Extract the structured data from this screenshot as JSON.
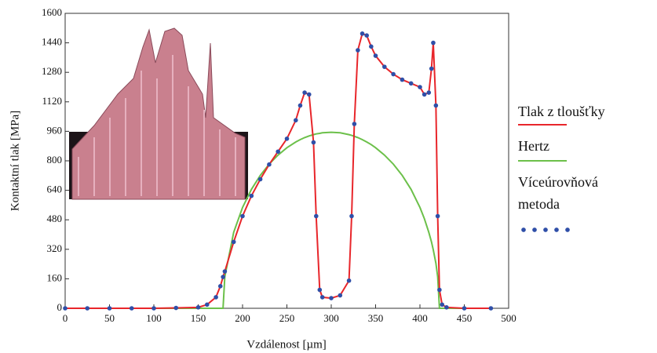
{
  "chart_data": {
    "type": "line",
    "xlabel": "Vzdálenost [µm]",
    "ylabel": "Kontaktní tlak [MPa]",
    "x": [
      0,
      25,
      50,
      75,
      100,
      125,
      150,
      160,
      170,
      175,
      178,
      180,
      190,
      200,
      210,
      220,
      230,
      240,
      250,
      260,
      265,
      270,
      275,
      280,
      283,
      287,
      290,
      300,
      310,
      320,
      323,
      326,
      330,
      335,
      340,
      345,
      350,
      360,
      370,
      380,
      390,
      400,
      405,
      410,
      413,
      415,
      418,
      420,
      422,
      425,
      430,
      450,
      480
    ],
    "series": [
      {
        "name": "Tlak z tloušťky",
        "color": "#e8262b",
        "style": "line",
        "values": [
          0,
          0,
          0,
          0,
          0,
          2,
          5,
          20,
          60,
          120,
          170,
          200,
          360,
          500,
          610,
          700,
          780,
          850,
          920,
          1020,
          1100,
          1170,
          1160,
          900,
          500,
          100,
          60,
          55,
          70,
          150,
          500,
          1000,
          1400,
          1490,
          1480,
          1420,
          1370,
          1310,
          1270,
          1240,
          1220,
          1200,
          1160,
          1170,
          1300,
          1440,
          1100,
          500,
          100,
          20,
          5,
          0,
          0
        ]
      },
      {
        "name": "Hertz",
        "color": "#6cc04a",
        "style": "line",
        "values": [
          0,
          0,
          0,
          0,
          0,
          0,
          0,
          0,
          0,
          0,
          0,
          171,
          412,
          547,
          645,
          721,
          782,
          831,
          871,
          902,
          915,
          926,
          935,
          942,
          946,
          949,
          952,
          955,
          952,
          942,
          938,
          933,
          926,
          915,
          902,
          888,
          871,
          831,
          782,
          721,
          645,
          547,
          486,
          412,
          360,
          318,
          244,
          171,
          0,
          0,
          0,
          0,
          0
        ]
      },
      {
        "name": "Víceúrovňová metoda",
        "color": "#2f4fa8",
        "style": "dots",
        "values": [
          0,
          0,
          0,
          0,
          0,
          2,
          5,
          20,
          60,
          120,
          170,
          200,
          360,
          500,
          610,
          700,
          780,
          850,
          920,
          1020,
          1100,
          1170,
          1160,
          900,
          500,
          100,
          60,
          55,
          70,
          150,
          500,
          1000,
          1400,
          1490,
          1480,
          1420,
          1370,
          1310,
          1270,
          1240,
          1220,
          1200,
          1160,
          1170,
          1300,
          1440,
          1100,
          500,
          100,
          20,
          5,
          0,
          0
        ]
      }
    ],
    "xlim": [
      0,
      500
    ],
    "xticks": [
      0,
      50,
      100,
      150,
      200,
      250,
      300,
      350,
      400,
      450,
      500
    ],
    "ylim": [
      0,
      1600
    ],
    "yticks": [
      0,
      160,
      320,
      480,
      640,
      800,
      960,
      1120,
      1280,
      1440,
      1600
    ],
    "grid": false,
    "legend": "right"
  }
}
